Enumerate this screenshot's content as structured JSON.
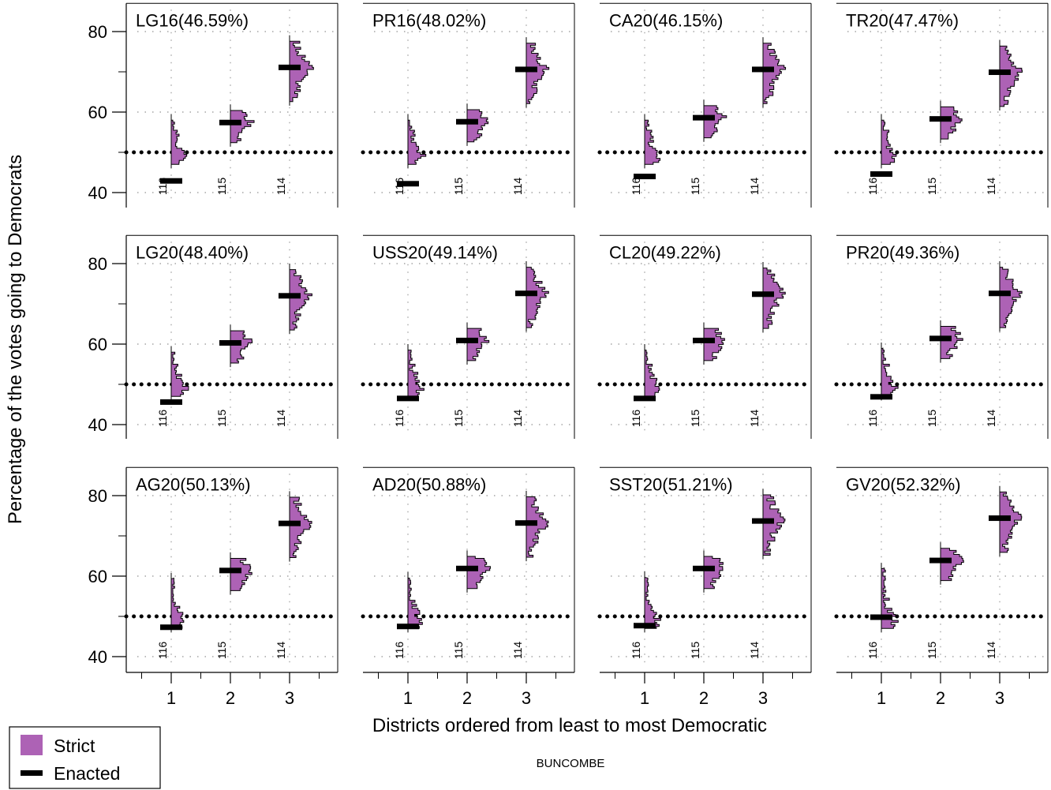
{
  "chart_data": {
    "type": "histogram-grid",
    "ylabel": "Percentage of the votes going to Democrats",
    "xlabel": "Districts ordered from least to most Democratic",
    "footer": "BUNCOMBE",
    "x_ticks": [
      "1",
      "2",
      "3"
    ],
    "y_ticks": [
      40,
      60,
      80
    ],
    "ylim": [
      36,
      87
    ],
    "reference_line": 50,
    "district_labels": [
      "116",
      "115",
      "114"
    ],
    "colors": {
      "strict": "#ad62b5",
      "enacted": "#000000"
    },
    "legend": [
      {
        "name": "Strict",
        "color": "#ad62b5"
      },
      {
        "name": "Enacted",
        "color": "#000000"
      }
    ],
    "panels": [
      {
        "label": "LG16(46.59%)",
        "enacted": [
          42.9,
          57.4,
          71.1
        ]
      },
      {
        "label": "PR16(48.02%)",
        "enacted": [
          42.2,
          57.6,
          70.6
        ]
      },
      {
        "label": "CA20(46.15%)",
        "enacted": [
          44.0,
          58.6,
          70.6
        ]
      },
      {
        "label": "TR20(47.47%)",
        "enacted": [
          44.6,
          58.3,
          69.9
        ]
      },
      {
        "label": "LG20(48.40%)",
        "enacted": [
          45.6,
          60.3,
          72.0
        ]
      },
      {
        "label": "USS20(49.14%)",
        "enacted": [
          46.5,
          60.9,
          72.6
        ]
      },
      {
        "label": "CL20(49.22%)",
        "enacted": [
          46.5,
          60.9,
          72.4
        ]
      },
      {
        "label": "PR20(49.36%)",
        "enacted": [
          46.9,
          61.4,
          72.6
        ]
      },
      {
        "label": "AG20(50.13%)",
        "enacted": [
          47.3,
          61.4,
          73.1
        ]
      },
      {
        "label": "AD20(50.88%)",
        "enacted": [
          47.5,
          61.9,
          73.2
        ]
      },
      {
        "label": "SST20(51.21%)",
        "enacted": [
          47.7,
          61.9,
          73.7
        ]
      },
      {
        "label": "GV20(52.32%)",
        "enacted": [
          49.8,
          63.9,
          74.4
        ]
      }
    ]
  }
}
